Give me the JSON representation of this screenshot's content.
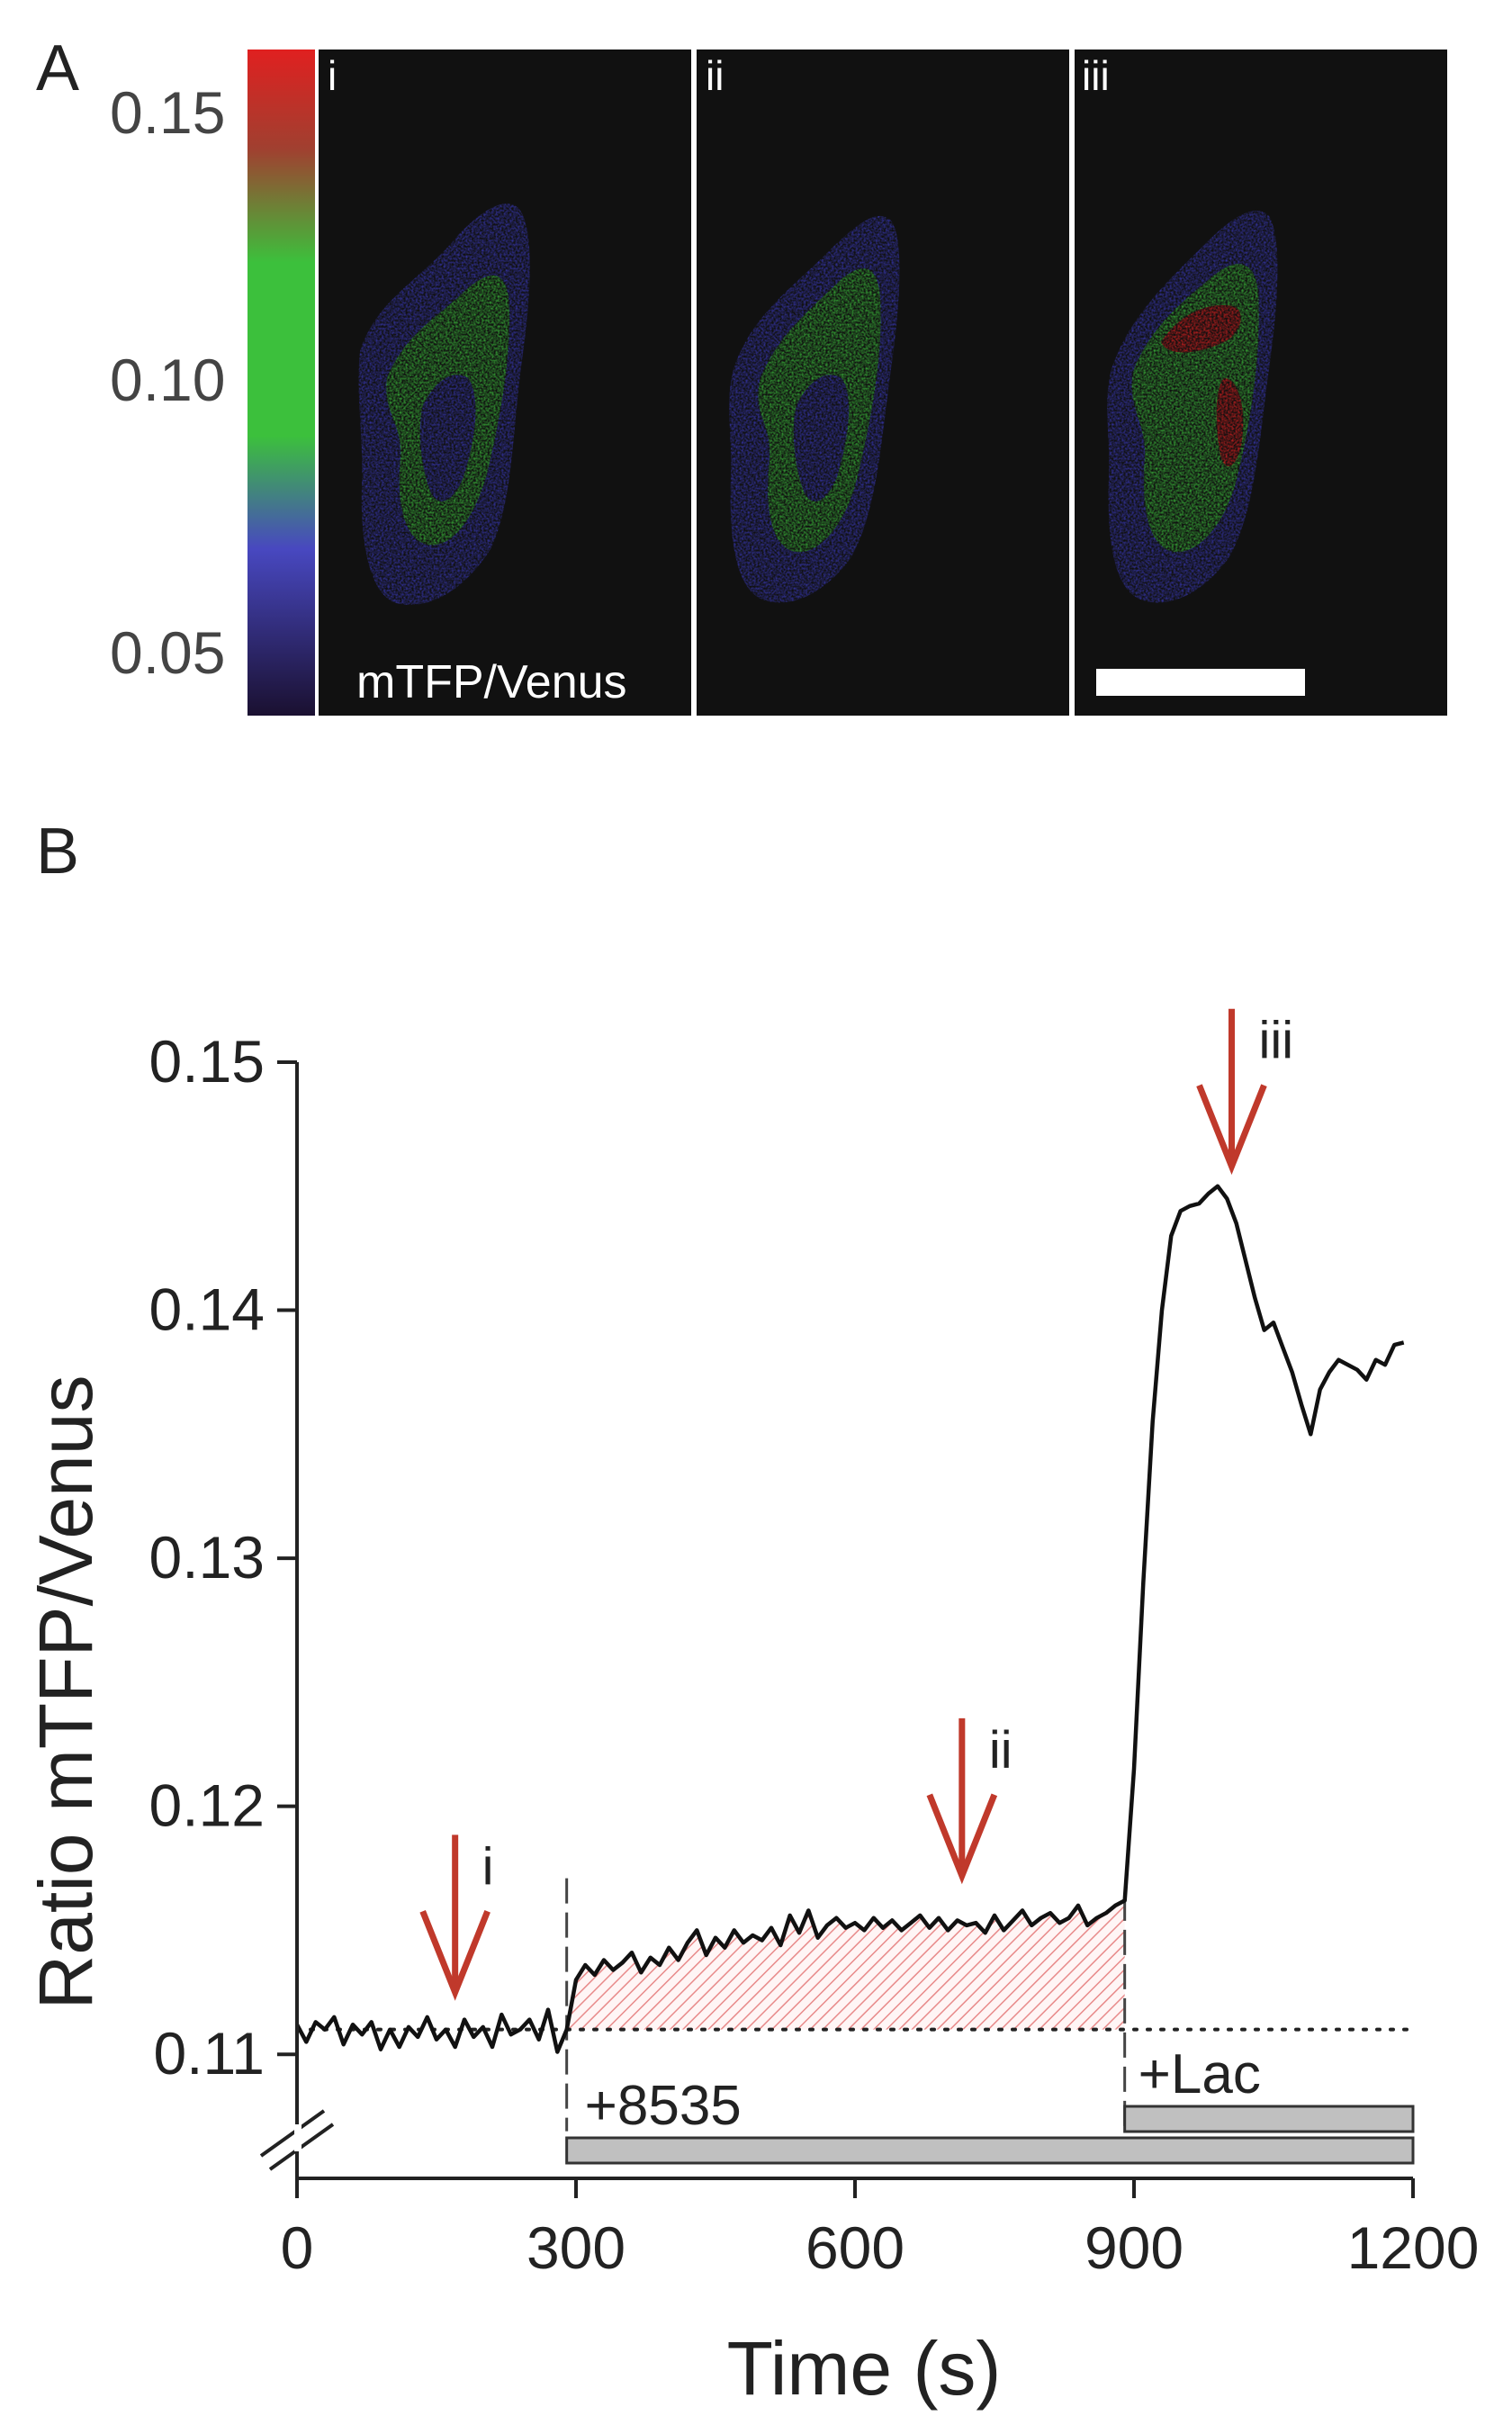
{
  "panel_a": {
    "letter": "A",
    "colorbar_ticks": [
      "0.15",
      "0.10",
      "0.05"
    ],
    "colorbar_values": [
      0.15,
      0.1,
      0.05
    ],
    "colorbar_range": [
      0.04,
      0.16
    ],
    "image_labels": [
      "i",
      "ii",
      "iii"
    ],
    "channel_label": "mTFP/Venus",
    "colors": {
      "low": "#1a1030",
      "mid_low": "#4848c0",
      "mid": "#3cc03c",
      "high": "#e02020"
    }
  },
  "panel_b": {
    "letter": "B",
    "arrow_color": "#c0392b",
    "shading_color": "#f0a0a0",
    "bar_color": "#c0c0c0"
  },
  "chart_data": {
    "type": "line",
    "xlabel": "Time (s)",
    "ylabel": "Ratio mTFP/Venus",
    "xlim": [
      0,
      1200
    ],
    "ylim": [
      0.105,
      0.15
    ],
    "xticks": [
      "0",
      "300",
      "600",
      "900",
      "1200"
    ],
    "xtick_values": [
      0,
      300,
      600,
      900,
      1200
    ],
    "yticks": [
      "0.11",
      "0.12",
      "0.13",
      "0.14",
      "0.15"
    ],
    "ytick_values": [
      0.11,
      0.12,
      0.13,
      0.14,
      0.15
    ],
    "baseline": 0.111,
    "x": [
      0,
      10,
      20,
      30,
      40,
      50,
      60,
      70,
      80,
      90,
      100,
      110,
      120,
      130,
      140,
      150,
      160,
      170,
      180,
      190,
      200,
      210,
      220,
      230,
      240,
      250,
      260,
      270,
      280,
      290,
      300,
      310,
      320,
      330,
      340,
      350,
      360,
      370,
      380,
      390,
      400,
      410,
      420,
      430,
      440,
      450,
      460,
      470,
      480,
      490,
      500,
      510,
      520,
      530,
      540,
      550,
      560,
      570,
      580,
      590,
      600,
      610,
      620,
      630,
      640,
      650,
      660,
      670,
      680,
      690,
      700,
      710,
      720,
      730,
      740,
      750,
      760,
      770,
      780,
      790,
      800,
      810,
      820,
      830,
      840,
      850,
      860,
      870,
      880,
      890,
      900,
      910,
      920,
      930,
      940,
      950,
      960,
      970,
      980,
      990,
      1000,
      1010,
      1020,
      1030,
      1040,
      1050,
      1060,
      1070,
      1080,
      1090,
      1100,
      1110,
      1120,
      1130,
      1140,
      1150,
      1160,
      1170,
      1180,
      1190
    ],
    "y": [
      0.1112,
      0.1105,
      0.1113,
      0.111,
      0.1115,
      0.1104,
      0.1112,
      0.1108,
      0.1113,
      0.1102,
      0.111,
      0.1103,
      0.1111,
      0.1107,
      0.1115,
      0.1106,
      0.111,
      0.1103,
      0.1114,
      0.1107,
      0.1111,
      0.1103,
      0.1116,
      0.1108,
      0.111,
      0.1114,
      0.1106,
      0.1118,
      0.1101,
      0.111,
      0.113,
      0.1136,
      0.1132,
      0.1138,
      0.1134,
      0.1137,
      0.1141,
      0.1133,
      0.1139,
      0.1136,
      0.1143,
      0.1138,
      0.1145,
      0.115,
      0.114,
      0.1147,
      0.1143,
      0.115,
      0.1145,
      0.1148,
      0.1146,
      0.1151,
      0.1144,
      0.1156,
      0.1149,
      0.1158,
      0.1147,
      0.1152,
      0.1155,
      0.1151,
      0.1153,
      0.115,
      0.1155,
      0.1151,
      0.1154,
      0.115,
      0.1153,
      0.1156,
      0.1151,
      0.1155,
      0.115,
      0.1154,
      0.1152,
      0.1153,
      0.1149,
      0.1156,
      0.115,
      0.1154,
      0.1158,
      0.1152,
      0.1155,
      0.1157,
      0.1153,
      0.1155,
      0.116,
      0.1152,
      0.1155,
      0.1157,
      0.116,
      0.1162,
      0.1215,
      0.129,
      0.1355,
      0.14,
      0.143,
      0.144,
      0.1442,
      0.1443,
      0.1447,
      0.145,
      0.1445,
      0.1435,
      0.142,
      0.1405,
      0.1392,
      0.1395,
      0.1385,
      0.1375,
      0.1362,
      0.135,
      0.1368,
      0.1375,
      0.138,
      0.1378,
      0.1376,
      0.1372,
      0.138,
      0.1378,
      0.1386,
      0.1387
    ],
    "shaded_region": {
      "x_start": 295,
      "x_end": 890,
      "label": ""
    },
    "treatments": [
      {
        "label": "+8535",
        "start": 290,
        "end": 1200
      },
      {
        "label": "+Lac",
        "start": 890,
        "end": 1200
      }
    ],
    "annotations": [
      {
        "label": "i",
        "x": 170,
        "y_tip": 0.1125
      },
      {
        "label": "ii",
        "x": 715,
        "y_tip": 0.1172
      },
      {
        "label": "iii",
        "x": 1005,
        "y_tip": 0.1458
      }
    ]
  }
}
